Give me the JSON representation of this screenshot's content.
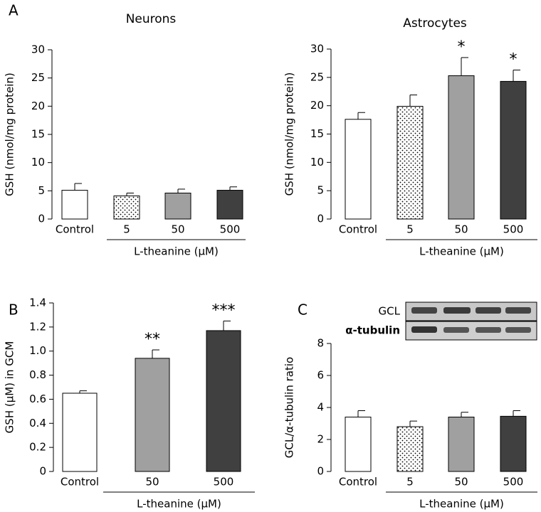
{
  "chart_data": [
    {
      "type": "bar",
      "panel_label": "A",
      "title": "Neurons",
      "ylabel": "GSH (nmol/mg protein)",
      "group_label": "L-theanine (μM)",
      "categories": [
        "Control",
        "5",
        "50",
        "500"
      ],
      "values": [
        5.1,
        4.1,
        4.6,
        5.1
      ],
      "errors": [
        1.2,
        0.5,
        0.7,
        0.6
      ],
      "bar_fills": [
        "#ffffff",
        "dots",
        "#a0a0a0",
        "#404040"
      ],
      "value_annotations": [
        null,
        null,
        null,
        null
      ],
      "ylim": [
        0,
        30
      ],
      "yticks": [
        0,
        5,
        10,
        15,
        20,
        25,
        30
      ]
    },
    {
      "type": "bar",
      "title": "Astrocytes",
      "ylabel": "GSH (nmol/mg protein)",
      "group_label": "L-theanine (μM)",
      "categories": [
        "Control",
        "5",
        "50",
        "500"
      ],
      "values": [
        17.6,
        19.9,
        25.3,
        24.3
      ],
      "errors": [
        1.2,
        2.0,
        3.2,
        2.0
      ],
      "bar_fills": [
        "#ffffff",
        "dots",
        "#a0a0a0",
        "#404040"
      ],
      "value_annotations": [
        null,
        null,
        "*",
        "*"
      ],
      "ylim": [
        0,
        30
      ],
      "yticks": [
        0,
        5,
        10,
        15,
        20,
        25,
        30
      ]
    },
    {
      "type": "bar",
      "panel_label": "B",
      "ylabel": "GSH (μM) in GCM",
      "group_label": "L-theanine (μM)",
      "categories": [
        "Control",
        "50",
        "500"
      ],
      "values": [
        0.65,
        0.94,
        1.17
      ],
      "errors": [
        0.02,
        0.07,
        0.08
      ],
      "bar_fills": [
        "#ffffff",
        "#a0a0a0",
        "#404040"
      ],
      "value_annotations": [
        null,
        "**",
        "***"
      ],
      "ylim": [
        0,
        1.4
      ],
      "yticks": [
        0,
        0.2,
        0.4,
        0.6,
        0.8,
        {
          "value": 1,
          "label": "1.0"
        },
        1.2,
        1.4
      ]
    },
    {
      "type": "bar",
      "panel_label": "C",
      "ylabel": "GCL/α-tubulin ratio",
      "group_label": "L-theanine (μM)",
      "blot_labels": [
        "GCL",
        "α-tubulin"
      ],
      "categories": [
        "Control",
        "5",
        "50",
        "500"
      ],
      "values": [
        3.4,
        2.8,
        3.4,
        3.45
      ],
      "errors": [
        0.4,
        0.35,
        0.3,
        0.35
      ],
      "bar_fills": [
        "#ffffff",
        "dots",
        "#a0a0a0",
        "#404040"
      ],
      "value_annotations": [
        null,
        null,
        null,
        null
      ],
      "ylim": [
        0,
        8
      ],
      "yticks": [
        0,
        2,
        4,
        6,
        8
      ]
    }
  ]
}
